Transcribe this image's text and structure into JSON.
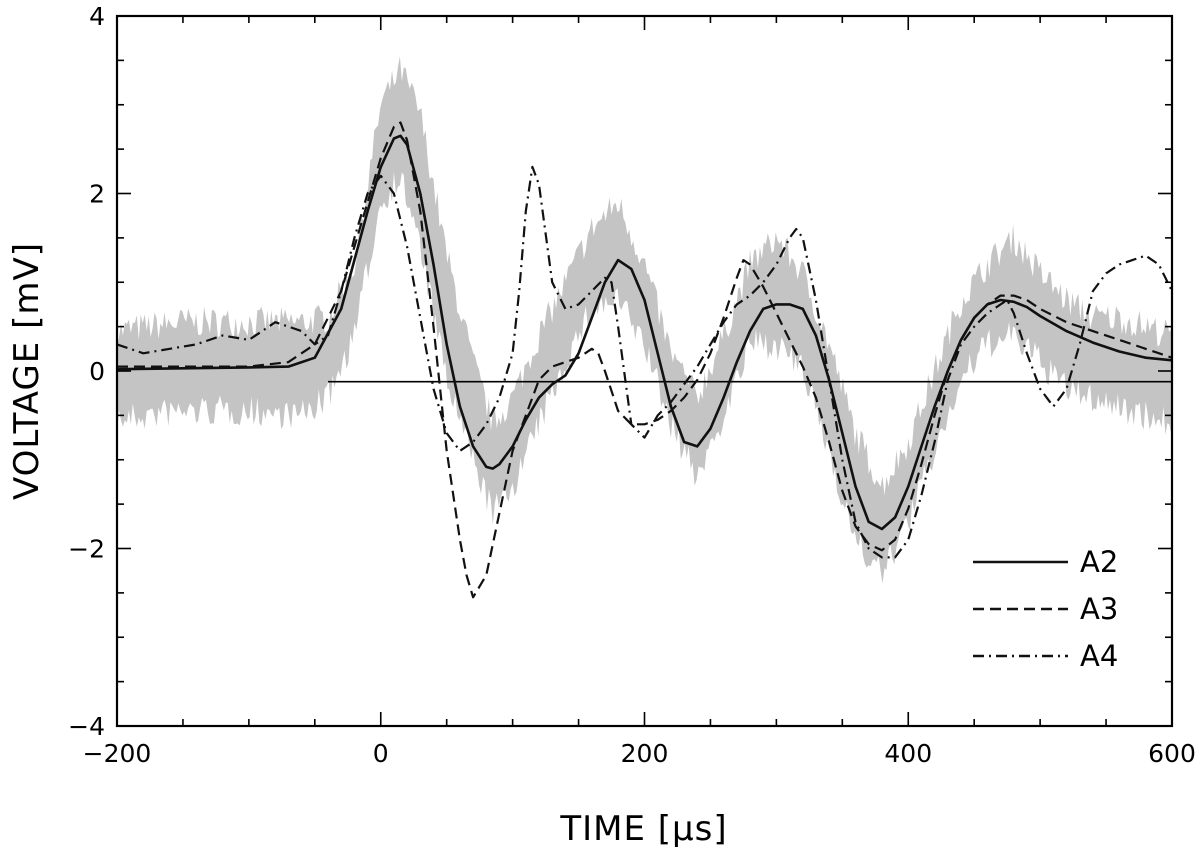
{
  "chart_data": {
    "type": "line",
    "xlabel": "TIME [μs]",
    "ylabel": "VOLTAGE [mV]",
    "xlim": [
      -200,
      600
    ],
    "ylim": [
      -4,
      4
    ],
    "x_ticks": [
      -200,
      0,
      200,
      400,
      600
    ],
    "y_ticks": [
      -4,
      -2,
      0,
      2,
      4
    ],
    "x_tick_labels": [
      "−200",
      "0",
      "200",
      "400",
      "600"
    ],
    "y_tick_labels": [
      "−4",
      "−2",
      "0",
      "2",
      "4"
    ],
    "grid": false,
    "legend_position": "bottom-right",
    "reference_line_y": -0.12,
    "band": {
      "color": "#c4c4c4",
      "x": [
        -200,
        -150,
        -100,
        -60,
        -40,
        -20,
        0,
        15,
        30,
        50,
        70,
        85,
        100,
        120,
        140,
        160,
        180,
        200,
        220,
        240,
        260,
        280,
        300,
        320,
        340,
        360,
        380,
        400,
        420,
        440,
        460,
        480,
        500,
        520,
        540,
        560,
        580,
        600
      ],
      "low": [
        -0.55,
        -0.45,
        -0.45,
        -0.5,
        -0.3,
        0.4,
        1.9,
        2.2,
        1.4,
        -0.1,
        -1.0,
        -1.6,
        -1.3,
        -0.6,
        0.1,
        0.7,
        0.8,
        0.3,
        -0.6,
        -1.2,
        -0.5,
        0.3,
        0.3,
        0.0,
        -0.9,
        -1.9,
        -2.3,
        -1.7,
        -0.9,
        -0.1,
        0.3,
        0.4,
        0.1,
        -0.2,
        -0.3,
        -0.4,
        -0.5,
        -0.6
      ],
      "high": [
        0.45,
        0.55,
        0.55,
        0.55,
        0.6,
        1.2,
        3.0,
        3.4,
        2.9,
        1.3,
        0.1,
        -0.6,
        -0.3,
        0.4,
        1.0,
        1.6,
        1.9,
        1.2,
        0.2,
        -0.3,
        0.4,
        1.2,
        1.5,
        1.1,
        0.3,
        -0.7,
        -1.3,
        -0.8,
        0.0,
        0.8,
        1.2,
        1.5,
        1.1,
        0.8,
        0.6,
        0.6,
        0.5,
        0.4
      ]
    },
    "series": [
      {
        "name": "A2",
        "dash": "",
        "x": [
          -200,
          -150,
          -100,
          -70,
          -50,
          -30,
          -10,
          0,
          10,
          15,
          20,
          30,
          40,
          50,
          60,
          70,
          80,
          85,
          90,
          100,
          110,
          120,
          130,
          140,
          150,
          160,
          170,
          180,
          190,
          200,
          210,
          220,
          230,
          240,
          250,
          260,
          270,
          280,
          290,
          300,
          310,
          320,
          330,
          340,
          350,
          360,
          370,
          380,
          390,
          400,
          410,
          420,
          430,
          440,
          450,
          460,
          470,
          480,
          490,
          500,
          520,
          540,
          560,
          580,
          600
        ],
        "y": [
          0.02,
          0.03,
          0.04,
          0.05,
          0.15,
          0.7,
          1.8,
          2.3,
          2.62,
          2.65,
          2.55,
          2.0,
          1.2,
          0.3,
          -0.4,
          -0.85,
          -1.08,
          -1.1,
          -1.05,
          -0.85,
          -0.55,
          -0.3,
          -0.15,
          -0.05,
          0.2,
          0.6,
          1.0,
          1.25,
          1.15,
          0.8,
          0.2,
          -0.4,
          -0.8,
          -0.85,
          -0.65,
          -0.3,
          0.1,
          0.45,
          0.7,
          0.75,
          0.75,
          0.7,
          0.4,
          -0.1,
          -0.7,
          -1.3,
          -1.7,
          -1.78,
          -1.65,
          -1.3,
          -0.85,
          -0.4,
          0.0,
          0.35,
          0.6,
          0.75,
          0.8,
          0.78,
          0.72,
          0.62,
          0.45,
          0.32,
          0.22,
          0.15,
          0.12
        ]
      },
      {
        "name": "A3",
        "dash": "11,6",
        "x": [
          -200,
          -150,
          -100,
          -70,
          -50,
          -30,
          -10,
          0,
          10,
          15,
          20,
          30,
          40,
          50,
          60,
          65,
          70,
          80,
          90,
          100,
          110,
          120,
          130,
          140,
          150,
          160,
          165,
          170,
          180,
          190,
          200,
          210,
          220,
          230,
          240,
          250,
          260,
          270,
          275,
          280,
          290,
          300,
          310,
          320,
          330,
          340,
          350,
          360,
          370,
          380,
          390,
          400,
          410,
          420,
          430,
          440,
          450,
          460,
          470,
          480,
          490,
          500,
          520,
          540,
          560,
          580,
          600
        ],
        "y": [
          0.05,
          0.05,
          0.05,
          0.1,
          0.3,
          0.9,
          1.9,
          2.4,
          2.75,
          2.8,
          2.6,
          1.8,
          0.5,
          -0.9,
          -1.9,
          -2.3,
          -2.55,
          -2.3,
          -1.6,
          -0.9,
          -0.5,
          -0.1,
          0.05,
          0.1,
          0.15,
          0.25,
          0.2,
          0.0,
          -0.45,
          -0.6,
          -0.6,
          -0.55,
          -0.45,
          -0.3,
          -0.1,
          0.2,
          0.6,
          1.05,
          1.25,
          1.2,
          0.95,
          0.65,
          0.35,
          0.05,
          -0.3,
          -0.8,
          -1.35,
          -1.75,
          -1.95,
          -2.02,
          -1.9,
          -1.55,
          -1.05,
          -0.5,
          0.0,
          0.35,
          0.6,
          0.75,
          0.85,
          0.85,
          0.8,
          0.7,
          0.55,
          0.45,
          0.35,
          0.25,
          0.15
        ]
      },
      {
        "name": "A4",
        "dash": "11,5,2,5",
        "x": [
          -200,
          -180,
          -160,
          -140,
          -120,
          -100,
          -90,
          -80,
          -70,
          -60,
          -50,
          -40,
          -30,
          -20,
          -10,
          0,
          10,
          20,
          30,
          40,
          50,
          60,
          70,
          80,
          90,
          100,
          105,
          110,
          115,
          120,
          130,
          140,
          150,
          160,
          170,
          175,
          180,
          190,
          200,
          210,
          220,
          230,
          240,
          250,
          260,
          270,
          280,
          290,
          300,
          310,
          315,
          320,
          330,
          340,
          350,
          360,
          370,
          380,
          385,
          390,
          400,
          410,
          420,
          430,
          440,
          450,
          460,
          470,
          475,
          480,
          490,
          500,
          510,
          520,
          530,
          540,
          550,
          560,
          570,
          580,
          590,
          600
        ],
        "y": [
          0.3,
          0.2,
          0.25,
          0.3,
          0.4,
          0.35,
          0.45,
          0.55,
          0.5,
          0.45,
          0.3,
          0.4,
          0.9,
          1.5,
          2.0,
          2.2,
          2.0,
          1.4,
          0.6,
          -0.2,
          -0.7,
          -0.9,
          -0.8,
          -0.6,
          -0.3,
          0.2,
          0.9,
          1.8,
          2.3,
          2.1,
          1.0,
          0.7,
          0.75,
          0.9,
          1.05,
          1.0,
          0.5,
          -0.6,
          -0.75,
          -0.5,
          -0.35,
          -0.15,
          0.05,
          0.3,
          0.55,
          0.75,
          0.85,
          1.0,
          1.2,
          1.5,
          1.6,
          1.5,
          0.8,
          -0.1,
          -1.0,
          -1.7,
          -2.0,
          -2.1,
          -2.1,
          -2.1,
          -1.9,
          -1.4,
          -0.8,
          -0.1,
          0.3,
          0.5,
          0.65,
          0.75,
          0.8,
          0.65,
          0.2,
          -0.2,
          -0.4,
          -0.2,
          0.3,
          0.9,
          1.1,
          1.2,
          1.25,
          1.3,
          1.2,
          0.9
        ]
      }
    ]
  }
}
